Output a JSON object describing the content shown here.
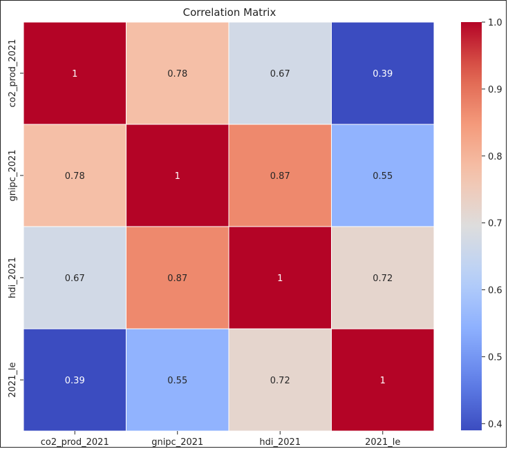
{
  "chart_data": {
    "type": "heatmap",
    "title": "Correlation Matrix",
    "rows": [
      "co2_prod_2021",
      "gnipc_2021",
      "hdi_2021",
      "2021_le"
    ],
    "cols": [
      "co2_prod_2021",
      "gnipc_2021",
      "hdi_2021",
      "2021_le"
    ],
    "matrix": [
      [
        1,
        0.78,
        0.67,
        0.39
      ],
      [
        0.78,
        1,
        0.87,
        0.55
      ],
      [
        0.67,
        0.87,
        1,
        0.72
      ],
      [
        0.39,
        0.55,
        0.72,
        1
      ]
    ],
    "cell_labels": [
      [
        "1",
        "0.78",
        "0.67",
        "0.39"
      ],
      [
        "0.78",
        "1",
        "0.87",
        "0.55"
      ],
      [
        "0.67",
        "0.87",
        "1",
        "0.72"
      ],
      [
        "0.39",
        "0.55",
        "0.72",
        "1"
      ]
    ],
    "colormap": "coolwarm",
    "colorbar": {
      "range": [
        0.39,
        1.0
      ],
      "ticks": [
        0.4,
        0.5,
        0.6,
        0.7,
        0.8,
        0.9,
        1.0
      ],
      "tick_labels": [
        "0.4",
        "0.5",
        "0.6",
        "0.7",
        "0.8",
        "0.9",
        "1.0"
      ]
    }
  }
}
